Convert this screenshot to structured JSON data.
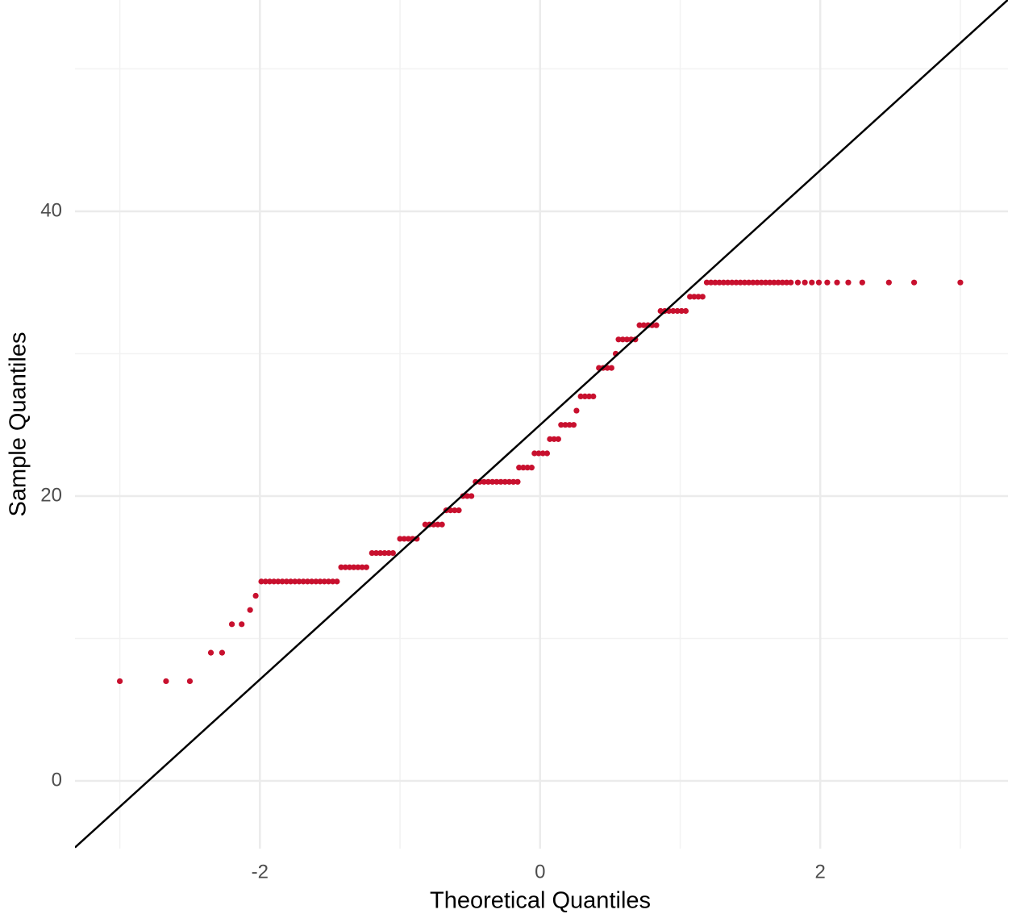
{
  "chart_data": {
    "type": "scatter",
    "x_label": "Theoretical Quantiles",
    "y_label": "Sample Quantiles",
    "xlim": [
      -3.32,
      3.34
    ],
    "ylim": [
      -4.76,
      54.84
    ],
    "xticks": [
      -2,
      0,
      2
    ],
    "yticks": [
      0,
      20,
      40
    ],
    "x_minor_grid": [
      -3,
      -1,
      1,
      3
    ],
    "y_minor_grid": [
      10,
      30,
      50
    ],
    "grid": true,
    "color": "#c8102e",
    "reference_line": {
      "intercept": 25,
      "slope": 8.94,
      "color": "#000000"
    },
    "x": [
      -3.0,
      -2.67,
      -2.5,
      -2.35,
      -2.27,
      -2.2,
      -2.13,
      -2.07,
      -2.03,
      -1.99,
      -1.96,
      -1.93,
      -1.9,
      -1.87,
      -1.84,
      -1.81,
      -1.78,
      -1.75,
      -1.72,
      -1.69,
      -1.66,
      -1.63,
      -1.6,
      -1.57,
      -1.54,
      -1.51,
      -1.48,
      -1.45,
      -1.42,
      -1.39,
      -1.36,
      -1.33,
      -1.3,
      -1.27,
      -1.24,
      -1.2,
      -1.17,
      -1.14,
      -1.11,
      -1.08,
      -1.05,
      -1.0,
      -0.97,
      -0.94,
      -0.91,
      -0.88,
      -0.82,
      -0.79,
      -0.76,
      -0.73,
      -0.7,
      -0.67,
      -0.64,
      -0.61,
      -0.58,
      -0.55,
      -0.52,
      -0.49,
      -0.46,
      -0.43,
      -0.4,
      -0.37,
      -0.34,
      -0.31,
      -0.28,
      -0.25,
      -0.22,
      -0.19,
      -0.16,
      -0.15,
      -0.12,
      -0.09,
      -0.06,
      -0.04,
      -0.01,
      0.02,
      0.05,
      0.07,
      0.1,
      0.13,
      0.15,
      0.18,
      0.21,
      0.24,
      0.26,
      0.29,
      0.32,
      0.35,
      0.38,
      0.42,
      0.45,
      0.48,
      0.51,
      0.54,
      0.56,
      0.59,
      0.62,
      0.65,
      0.68,
      0.71,
      0.74,
      0.77,
      0.8,
      0.83,
      0.86,
      0.89,
      0.92,
      0.95,
      0.98,
      1.01,
      1.04,
      1.07,
      1.1,
      1.13,
      1.16,
      1.19,
      1.22,
      1.25,
      1.28,
      1.31,
      1.34,
      1.37,
      1.4,
      1.43,
      1.46,
      1.49,
      1.52,
      1.55,
      1.58,
      1.61,
      1.64,
      1.67,
      1.7,
      1.73,
      1.76,
      1.79,
      1.84,
      1.89,
      1.94,
      1.99,
      2.05,
      2.12,
      2.2,
      2.3,
      2.49,
      2.67,
      3.0
    ],
    "y": [
      7,
      7,
      7,
      9,
      9,
      11,
      11,
      12,
      13,
      14,
      14,
      14,
      14,
      14,
      14,
      14,
      14,
      14,
      14,
      14,
      14,
      14,
      14,
      14,
      14,
      14,
      14,
      14,
      15,
      15,
      15,
      15,
      15,
      15,
      15,
      16,
      16,
      16,
      16,
      16,
      16,
      17,
      17,
      17,
      17,
      17,
      18,
      18,
      18,
      18,
      18,
      19,
      19,
      19,
      19,
      20,
      20,
      20,
      21,
      21,
      21,
      21,
      21,
      21,
      21,
      21,
      21,
      21,
      21,
      22,
      22,
      22,
      22,
      23,
      23,
      23,
      23,
      24,
      24,
      24,
      25,
      25,
      25,
      25,
      26,
      27,
      27,
      27,
      27,
      29,
      29,
      29,
      29,
      30,
      31,
      31,
      31,
      31,
      31,
      32,
      32,
      32,
      32,
      32,
      33,
      33,
      33,
      33,
      33,
      33,
      33,
      34,
      34,
      34,
      34,
      35,
      35,
      35,
      35,
      35,
      35,
      35,
      35,
      35,
      35,
      35,
      35,
      35,
      35,
      35,
      35,
      35,
      35,
      35,
      35,
      35,
      35,
      35,
      35,
      35,
      35,
      35,
      35,
      35,
      35,
      35,
      35
    ]
  }
}
